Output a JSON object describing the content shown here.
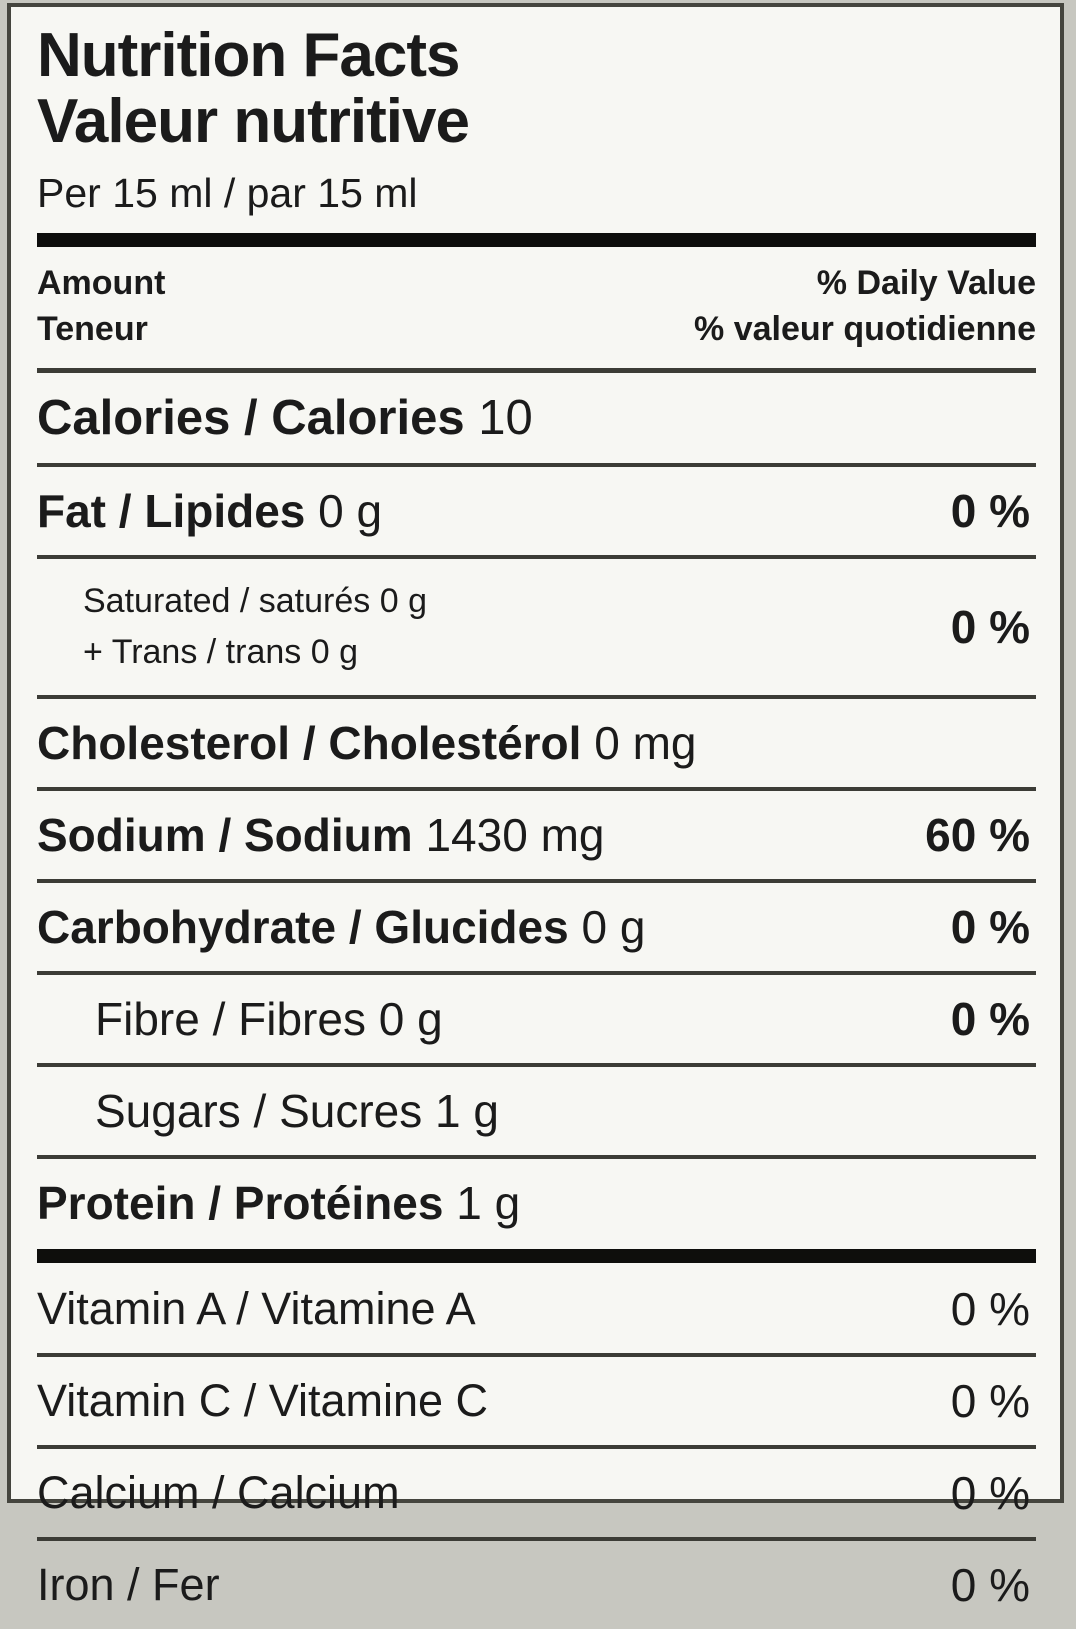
{
  "label": {
    "title_en": "Nutrition Facts",
    "title_fr": "Valeur nutritive",
    "serving": "Per 15 ml / par 15 ml",
    "header": {
      "amount_en": "Amount",
      "amount_fr": "Teneur",
      "daily_value_en": "% Daily Value",
      "daily_value_fr": "% valeur quotidienne"
    },
    "rows": [
      {
        "id": "calories",
        "label": "Calories / Calories",
        "amount": "10",
        "dv": ""
      },
      {
        "id": "fat",
        "label": "Fat / Lipides",
        "amount": "0 g",
        "dv": "0 %"
      },
      {
        "id": "saturated",
        "line1": "Saturated / saturés 0 g",
        "line2": "+ Trans / trans 0 g",
        "dv": "0 %"
      },
      {
        "id": "cholesterol",
        "label": "Cholesterol / Cholestérol",
        "amount": "0 mg",
        "dv": ""
      },
      {
        "id": "sodium",
        "label": "Sodium / Sodium",
        "amount": "1430 mg",
        "dv": "60 %"
      },
      {
        "id": "carbohydrate",
        "label": "Carbohydrate / Glucides",
        "amount": "0 g",
        "dv": "0 %"
      },
      {
        "id": "fibre",
        "label": "Fibre / Fibres",
        "amount": "0 g",
        "dv": "0 %"
      },
      {
        "id": "sugars",
        "label": "Sugars / Sucres",
        "amount": "1 g",
        "dv": ""
      },
      {
        "id": "protein",
        "label": "Protein / Protéines",
        "amount": "1 g",
        "dv": ""
      },
      {
        "id": "vitamin-a",
        "label": "Vitamin A / Vitamine A",
        "amount": "",
        "dv": "0 %"
      },
      {
        "id": "vitamin-c",
        "label": "Vitamin C / Vitamine C",
        "amount": "",
        "dv": "0 %"
      },
      {
        "id": "calcium",
        "label": "Calcium / Calcium",
        "amount": "",
        "dv": "0 %"
      },
      {
        "id": "iron",
        "label": "Iron / Fer",
        "amount": "",
        "dv": "0 %"
      }
    ],
    "colors": {
      "text": "#1b1b1b",
      "background": "#f7f7f3",
      "border": "#45453e",
      "thick_bar": "#0e0e0c"
    }
  }
}
